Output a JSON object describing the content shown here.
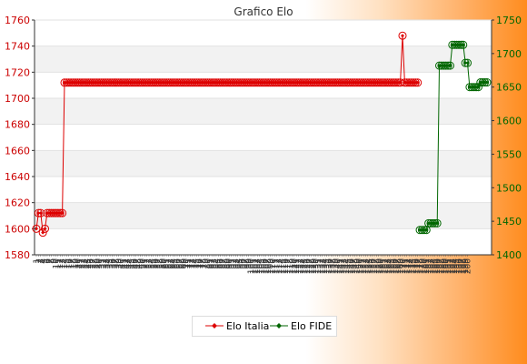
{
  "chart_data": {
    "type": "line",
    "title": "Grafico Elo",
    "grid": true,
    "legend_position": "bottom",
    "y_left": {
      "ylim": [
        1580,
        1760
      ],
      "ticks": [
        1580,
        1600,
        1620,
        1640,
        1660,
        1680,
        1700,
        1720,
        1740,
        1760
      ],
      "color": "#cc0000"
    },
    "y_right": {
      "ylim": [
        1400,
        1750
      ],
      "ticks": [
        1400,
        1450,
        1500,
        1550,
        1600,
        1650,
        1700,
        1750
      ],
      "color": "#006600"
    },
    "x_ticks": [
      "1",
      "2",
      "3",
      "4",
      "5",
      "6",
      "7",
      "8",
      "9",
      "10",
      "11",
      "12",
      "13",
      "14",
      "15",
      "16",
      "17",
      "18",
      "19",
      "20",
      "21",
      "22",
      "23",
      "24",
      "25",
      "26",
      "27",
      "28",
      "29",
      "30",
      "31",
      "32",
      "33",
      "34",
      "35",
      "36",
      "37",
      "38",
      "39",
      "40",
      "41",
      "42",
      "43",
      "44",
      "45",
      "46",
      "47",
      "48",
      "49",
      "50",
      "51",
      "52",
      "53",
      "54",
      "55",
      "56",
      "57",
      "58",
      "59",
      "60",
      "61",
      "62",
      "63",
      "64",
      "65",
      "66",
      "67",
      "68",
      "69",
      "70",
      "71",
      "72",
      "73",
      "74",
      "75",
      "76",
      "77",
      "78",
      "79",
      "80",
      "81",
      "82",
      "83",
      "84",
      "85",
      "86",
      "87",
      "88",
      "89",
      "90",
      "91",
      "92",
      "93",
      "94",
      "95",
      "96",
      "97",
      "98",
      "99",
      "100",
      "101",
      "102",
      "103",
      "104",
      "105",
      "106",
      "107",
      "108",
      "109",
      "110",
      "111",
      "112",
      "113",
      "114",
      "115",
      "116",
      "117",
      "118",
      "119",
      "120",
      "121",
      "122",
      "123",
      "124",
      "125",
      "126",
      "127",
      "128",
      "129",
      "130",
      "131",
      "132",
      "133",
      "134",
      "135",
      "136",
      "137",
      "138",
      "139",
      "140",
      "141",
      "142",
      "143",
      "144",
      "145",
      "146",
      "147",
      "148",
      "149",
      "150",
      "151",
      "152",
      "153",
      "154",
      "155",
      "156",
      "157",
      "158",
      "159",
      "160",
      "161",
      "162",
      "163",
      "164",
      "165",
      "166",
      "167",
      "168",
      "169",
      "170",
      "171",
      "172",
      "173",
      "174",
      "175",
      "176",
      "177",
      "178",
      "179",
      "180",
      "181",
      "182",
      "183",
      "184",
      "185",
      "186",
      "187",
      "188",
      "189",
      "190",
      "191",
      "192",
      "193",
      "194",
      "195",
      "196",
      "197",
      "198",
      "199",
      "200"
    ],
    "series": [
      {
        "name": "Elo Italia",
        "axis": "left",
        "color": "#dd0000",
        "points": [
          [
            1,
            1600
          ],
          [
            2,
            1612
          ],
          [
            3,
            1612
          ],
          [
            4,
            1597
          ],
          [
            5,
            1600
          ],
          [
            6,
            1612
          ],
          [
            7,
            1612
          ],
          [
            8,
            1612
          ],
          [
            9,
            1612
          ],
          [
            10,
            1612
          ],
          [
            11,
            1612
          ],
          [
            12,
            1612
          ],
          [
            13,
            1612
          ],
          [
            14,
            1712
          ],
          [
            15,
            1712
          ],
          [
            16,
            1712
          ],
          [
            17,
            1712
          ],
          [
            18,
            1712
          ],
          [
            19,
            1712
          ],
          [
            20,
            1712
          ],
          [
            21,
            1712
          ],
          [
            22,
            1712
          ],
          [
            23,
            1712
          ],
          [
            24,
            1712
          ],
          [
            25,
            1712
          ],
          [
            26,
            1712
          ],
          [
            27,
            1712
          ],
          [
            28,
            1712
          ],
          [
            29,
            1712
          ],
          [
            30,
            1712
          ],
          [
            31,
            1712
          ],
          [
            32,
            1712
          ],
          [
            33,
            1712
          ],
          [
            34,
            1712
          ],
          [
            35,
            1712
          ],
          [
            36,
            1712
          ],
          [
            37,
            1712
          ],
          [
            38,
            1712
          ],
          [
            39,
            1712
          ],
          [
            40,
            1712
          ],
          [
            41,
            1712
          ],
          [
            42,
            1712
          ],
          [
            43,
            1712
          ],
          [
            44,
            1712
          ],
          [
            45,
            1712
          ],
          [
            46,
            1712
          ],
          [
            47,
            1712
          ],
          [
            48,
            1712
          ],
          [
            49,
            1712
          ],
          [
            50,
            1712
          ],
          [
            51,
            1712
          ],
          [
            52,
            1712
          ],
          [
            53,
            1712
          ],
          [
            54,
            1712
          ],
          [
            55,
            1712
          ],
          [
            56,
            1712
          ],
          [
            57,
            1712
          ],
          [
            58,
            1712
          ],
          [
            59,
            1712
          ],
          [
            60,
            1712
          ],
          [
            61,
            1712
          ],
          [
            62,
            1712
          ],
          [
            63,
            1712
          ],
          [
            64,
            1712
          ],
          [
            65,
            1712
          ],
          [
            66,
            1712
          ],
          [
            67,
            1712
          ],
          [
            68,
            1712
          ],
          [
            69,
            1712
          ],
          [
            70,
            1712
          ],
          [
            71,
            1712
          ],
          [
            72,
            1712
          ],
          [
            73,
            1712
          ],
          [
            74,
            1712
          ],
          [
            75,
            1712
          ],
          [
            76,
            1712
          ],
          [
            77,
            1712
          ],
          [
            78,
            1712
          ],
          [
            79,
            1712
          ],
          [
            80,
            1712
          ],
          [
            81,
            1712
          ],
          [
            82,
            1712
          ],
          [
            83,
            1712
          ],
          [
            84,
            1712
          ],
          [
            85,
            1712
          ],
          [
            86,
            1712
          ],
          [
            87,
            1712
          ],
          [
            88,
            1712
          ],
          [
            89,
            1712
          ],
          [
            90,
            1712
          ],
          [
            91,
            1712
          ],
          [
            92,
            1712
          ],
          [
            93,
            1712
          ],
          [
            94,
            1712
          ],
          [
            95,
            1712
          ],
          [
            96,
            1712
          ],
          [
            97,
            1712
          ],
          [
            98,
            1712
          ],
          [
            99,
            1712
          ],
          [
            100,
            1712
          ],
          [
            101,
            1712
          ],
          [
            102,
            1712
          ],
          [
            103,
            1712
          ],
          [
            104,
            1712
          ],
          [
            105,
            1712
          ],
          [
            106,
            1712
          ],
          [
            107,
            1712
          ],
          [
            108,
            1712
          ],
          [
            109,
            1712
          ],
          [
            110,
            1712
          ],
          [
            111,
            1712
          ],
          [
            112,
            1712
          ],
          [
            113,
            1712
          ],
          [
            114,
            1712
          ],
          [
            115,
            1712
          ],
          [
            116,
            1712
          ],
          [
            117,
            1712
          ],
          [
            118,
            1712
          ],
          [
            119,
            1712
          ],
          [
            120,
            1712
          ],
          [
            121,
            1712
          ],
          [
            122,
            1712
          ],
          [
            123,
            1712
          ],
          [
            124,
            1712
          ],
          [
            125,
            1712
          ],
          [
            126,
            1712
          ],
          [
            127,
            1712
          ],
          [
            128,
            1712
          ],
          [
            129,
            1712
          ],
          [
            130,
            1712
          ],
          [
            131,
            1712
          ],
          [
            132,
            1712
          ],
          [
            133,
            1712
          ],
          [
            134,
            1712
          ],
          [
            135,
            1712
          ],
          [
            136,
            1712
          ],
          [
            137,
            1712
          ],
          [
            138,
            1712
          ],
          [
            139,
            1712
          ],
          [
            140,
            1712
          ],
          [
            141,
            1712
          ],
          [
            142,
            1712
          ],
          [
            143,
            1712
          ],
          [
            144,
            1712
          ],
          [
            145,
            1712
          ],
          [
            146,
            1712
          ],
          [
            147,
            1712
          ],
          [
            148,
            1712
          ],
          [
            149,
            1712
          ],
          [
            150,
            1712
          ],
          [
            151,
            1712
          ],
          [
            152,
            1712
          ],
          [
            153,
            1712
          ],
          [
            154,
            1712
          ],
          [
            155,
            1712
          ],
          [
            156,
            1712
          ],
          [
            157,
            1712
          ],
          [
            158,
            1712
          ],
          [
            159,
            1712
          ],
          [
            160,
            1712
          ],
          [
            161,
            1712
          ],
          [
            162,
            1712
          ],
          [
            163,
            1712
          ],
          [
            164,
            1712
          ],
          [
            165,
            1712
          ],
          [
            166,
            1712
          ],
          [
            167,
            1712
          ],
          [
            168,
            1712
          ],
          [
            169,
            1712
          ],
          [
            170,
            1748
          ],
          [
            171,
            1712
          ],
          [
            172,
            1712
          ],
          [
            173,
            1712
          ],
          [
            174,
            1712
          ],
          [
            175,
            1712
          ],
          [
            176,
            1712
          ],
          [
            177,
            1712
          ]
        ]
      },
      {
        "name": "Elo FIDE",
        "axis": "right",
        "color": "#006600",
        "points": [
          [
            178,
            1437
          ],
          [
            179,
            1437
          ],
          [
            180,
            1437
          ],
          [
            181,
            1437
          ],
          [
            182,
            1447
          ],
          [
            183,
            1447
          ],
          [
            184,
            1447
          ],
          [
            185,
            1447
          ],
          [
            186,
            1447
          ],
          [
            187,
            1682
          ],
          [
            188,
            1682
          ],
          [
            189,
            1682
          ],
          [
            190,
            1682
          ],
          [
            191,
            1682
          ],
          [
            192,
            1682
          ],
          [
            193,
            1713
          ],
          [
            194,
            1713
          ],
          [
            195,
            1713
          ],
          [
            196,
            1713
          ],
          [
            197,
            1713
          ],
          [
            198,
            1713
          ],
          [
            199,
            1686
          ],
          [
            200,
            1686
          ],
          [
            201,
            1650
          ],
          [
            202,
            1650
          ],
          [
            203,
            1650
          ],
          [
            204,
            1650
          ],
          [
            205,
            1650
          ],
          [
            206,
            1657
          ],
          [
            207,
            1657
          ],
          [
            208,
            1657
          ],
          [
            209,
            1657
          ]
        ]
      }
    ]
  }
}
